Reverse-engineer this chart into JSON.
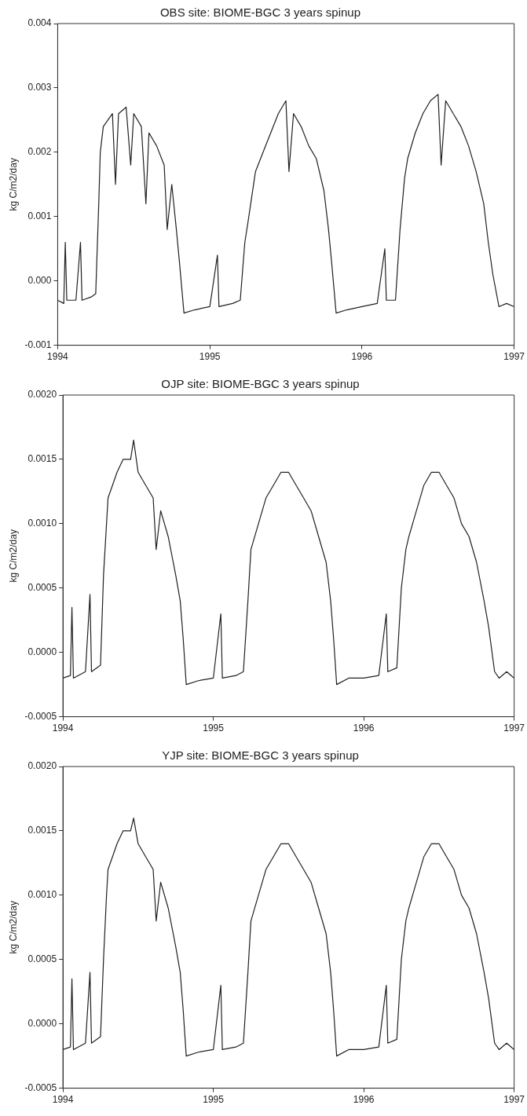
{
  "chart_data": [
    {
      "type": "line",
      "title": "OBS site: BIOME-BGC 3 years spinup",
      "ylabel": "kg C/m2/day",
      "grid": false,
      "legend": false,
      "marker": "none",
      "line_style": "solid",
      "xlim": [
        1994,
        1997
      ],
      "xticks": [
        1994,
        1995,
        1996,
        1997
      ],
      "ylim": [
        -0.001,
        0.004
      ],
      "yticks": [
        {
          "value": -0.001,
          "label": "-0.001"
        },
        {
          "value": 0,
          "label": "0.000"
        },
        {
          "value": 0.001,
          "label": "0.001"
        },
        {
          "value": 0.002,
          "label": "0.002"
        },
        {
          "value": 0.003,
          "label": "0.003"
        },
        {
          "value": 0.004,
          "label": "0.004"
        }
      ],
      "series": [
        {
          "color": "#202020",
          "x": [
            1994.0,
            1994.04,
            1994.05,
            1994.06,
            1994.12,
            1994.15,
            1994.16,
            1994.22,
            1994.25,
            1994.27,
            1994.28,
            1994.3,
            1994.33,
            1994.36,
            1994.38,
            1994.4,
            1994.45,
            1994.48,
            1994.5,
            1994.55,
            1994.58,
            1994.6,
            1994.65,
            1994.7,
            1994.72,
            1994.75,
            1994.78,
            1994.8,
            1994.83,
            1994.9,
            1995.0,
            1995.05,
            1995.06,
            1995.15,
            1995.2,
            1995.23,
            1995.25,
            1995.3,
            1995.35,
            1995.4,
            1995.45,
            1995.5,
            1995.52,
            1995.55,
            1995.6,
            1995.65,
            1995.7,
            1995.75,
            1995.78,
            1995.8,
            1995.83,
            1995.9,
            1996.0,
            1996.1,
            1996.15,
            1996.16,
            1996.22,
            1996.25,
            1996.28,
            1996.3,
            1996.35,
            1996.4,
            1996.45,
            1996.5,
            1996.52,
            1996.55,
            1996.6,
            1996.65,
            1996.7,
            1996.75,
            1996.8,
            1996.83,
            1996.86,
            1996.9,
            1996.95,
            1997.0
          ],
          "values": [
            -0.0003,
            -0.00035,
            0.0006,
            -0.0003,
            -0.0003,
            0.0006,
            -0.0003,
            -0.00025,
            -0.0002,
            0.0012,
            0.002,
            0.0024,
            0.0025,
            0.0026,
            0.0015,
            0.0026,
            0.0027,
            0.0018,
            0.0026,
            0.0024,
            0.0012,
            0.0023,
            0.0021,
            0.0018,
            0.0008,
            0.0015,
            0.0008,
            0.0003,
            -0.0005,
            -0.00045,
            -0.0004,
            0.0004,
            -0.0004,
            -0.00035,
            -0.0003,
            0.0006,
            0.0009,
            0.0017,
            0.002,
            0.0023,
            0.0026,
            0.0028,
            0.0017,
            0.0026,
            0.0024,
            0.0021,
            0.0019,
            0.0014,
            0.0008,
            0.0003,
            -0.0005,
            -0.00045,
            -0.0004,
            -0.00035,
            0.0005,
            -0.0003,
            -0.0003,
            0.0008,
            0.0016,
            0.0019,
            0.0023,
            0.0026,
            0.0028,
            0.0029,
            0.0018,
            0.0028,
            0.0026,
            0.0024,
            0.0021,
            0.0017,
            0.0012,
            0.0006,
            0.0001,
            -0.0004,
            -0.00035,
            -0.0004
          ]
        }
      ]
    },
    {
      "type": "line",
      "title": "OJP site: BIOME-BGC 3 years spinup",
      "ylabel": "kg C/m2/day",
      "grid": false,
      "legend": false,
      "marker": "none",
      "line_style": "solid",
      "xlim": [
        1994,
        1997
      ],
      "xticks": [
        1994,
        1995,
        1996,
        1997
      ],
      "ylim": [
        -0.0005,
        0.002
      ],
      "yticks": [
        {
          "value": -0.0005,
          "label": "-0.0005"
        },
        {
          "value": 0,
          "label": "0.0000"
        },
        {
          "value": 0.0005,
          "label": "0.0005"
        },
        {
          "value": 0.001,
          "label": "0.0010"
        },
        {
          "value": 0.0015,
          "label": "0.0015"
        },
        {
          "value": 0.002,
          "label": "0.0020"
        }
      ],
      "series": [
        {
          "color": "#202020",
          "x": [
            1994.0,
            1994.05,
            1994.06,
            1994.07,
            1994.15,
            1994.18,
            1994.19,
            1994.25,
            1994.27,
            1994.29,
            1994.3,
            1994.33,
            1994.36,
            1994.4,
            1994.45,
            1994.47,
            1994.5,
            1994.55,
            1994.6,
            1994.62,
            1994.65,
            1994.7,
            1994.75,
            1994.78,
            1994.8,
            1994.82,
            1994.9,
            1995.0,
            1995.05,
            1995.06,
            1995.15,
            1995.2,
            1995.23,
            1995.25,
            1995.3,
            1995.35,
            1995.4,
            1995.45,
            1995.5,
            1995.55,
            1995.6,
            1995.65,
            1995.7,
            1995.75,
            1995.78,
            1995.8,
            1995.82,
            1995.9,
            1996.0,
            1996.1,
            1996.15,
            1996.16,
            1996.22,
            1996.25,
            1996.28,
            1996.3,
            1996.35,
            1996.4,
            1996.45,
            1996.5,
            1996.55,
            1996.6,
            1996.65,
            1996.7,
            1996.75,
            1996.8,
            1996.83,
            1996.87,
            1996.9,
            1996.95,
            1997.0
          ],
          "values": [
            -0.0002,
            -0.00018,
            0.00035,
            -0.0002,
            -0.00015,
            0.00045,
            -0.00015,
            -0.0001,
            0.0006,
            0.001,
            0.0012,
            0.0013,
            0.0014,
            0.0015,
            0.0015,
            0.00165,
            0.0014,
            0.0013,
            0.0012,
            0.0008,
            0.0011,
            0.0009,
            0.0006,
            0.0004,
            0.0001,
            -0.00025,
            -0.00022,
            -0.0002,
            0.0003,
            -0.0002,
            -0.00018,
            -0.00015,
            0.0004,
            0.0008,
            0.001,
            0.0012,
            0.0013,
            0.0014,
            0.0014,
            0.0013,
            0.0012,
            0.0011,
            0.0009,
            0.0007,
            0.0004,
            0.0001,
            -0.00025,
            -0.0002,
            -0.0002,
            -0.00018,
            0.0003,
            -0.00015,
            -0.00012,
            0.0005,
            0.0008,
            0.0009,
            0.0011,
            0.0013,
            0.0014,
            0.0014,
            0.0013,
            0.0012,
            0.001,
            0.0009,
            0.0007,
            0.0004,
            0.0002,
            -0.00015,
            -0.0002,
            -0.00015,
            -0.0002
          ]
        }
      ]
    },
    {
      "type": "line",
      "title": "YJP site: BIOME-BGC 3 years spinup",
      "ylabel": "kg C/m2/day",
      "grid": false,
      "legend": false,
      "marker": "none",
      "line_style": "solid",
      "xlim": [
        1994,
        1997
      ],
      "xticks": [
        1994,
        1995,
        1996,
        1997
      ],
      "ylim": [
        -0.0005,
        0.002
      ],
      "yticks": [
        {
          "value": -0.0005,
          "label": "-0.0005"
        },
        {
          "value": 0,
          "label": "0.0000"
        },
        {
          "value": 0.0005,
          "label": "0.0005"
        },
        {
          "value": 0.001,
          "label": "0.0010"
        },
        {
          "value": 0.0015,
          "label": "0.0015"
        },
        {
          "value": 0.002,
          "label": "0.0020"
        }
      ],
      "series": [
        {
          "color": "#202020",
          "x": [
            1994.0,
            1994.05,
            1994.06,
            1994.07,
            1994.15,
            1994.18,
            1994.19,
            1994.25,
            1994.27,
            1994.29,
            1994.3,
            1994.33,
            1994.36,
            1994.4,
            1994.45,
            1994.47,
            1994.5,
            1994.55,
            1994.6,
            1994.62,
            1994.65,
            1994.7,
            1994.75,
            1994.78,
            1994.8,
            1994.82,
            1994.9,
            1995.0,
            1995.05,
            1995.06,
            1995.15,
            1995.2,
            1995.23,
            1995.25,
            1995.3,
            1995.35,
            1995.4,
            1995.45,
            1995.5,
            1995.55,
            1995.6,
            1995.65,
            1995.7,
            1995.75,
            1995.78,
            1995.8,
            1995.82,
            1995.9,
            1996.0,
            1996.1,
            1996.15,
            1996.16,
            1996.22,
            1996.25,
            1996.28,
            1996.3,
            1996.35,
            1996.4,
            1996.45,
            1996.5,
            1996.55,
            1996.6,
            1996.65,
            1996.7,
            1996.75,
            1996.8,
            1996.83,
            1996.87,
            1996.9,
            1996.95,
            1997.0
          ],
          "values": [
            -0.0002,
            -0.00018,
            0.00035,
            -0.0002,
            -0.00015,
            0.0004,
            -0.00015,
            -0.0001,
            0.0005,
            0.001,
            0.0012,
            0.0013,
            0.0014,
            0.0015,
            0.0015,
            0.0016,
            0.0014,
            0.0013,
            0.0012,
            0.0008,
            0.0011,
            0.0009,
            0.0006,
            0.0004,
            0.0001,
            -0.00025,
            -0.00022,
            -0.0002,
            0.0003,
            -0.0002,
            -0.00018,
            -0.00015,
            0.0004,
            0.0008,
            0.001,
            0.0012,
            0.0013,
            0.0014,
            0.0014,
            0.0013,
            0.0012,
            0.0011,
            0.0009,
            0.0007,
            0.0004,
            0.0001,
            -0.00025,
            -0.0002,
            -0.0002,
            -0.00018,
            0.0003,
            -0.00015,
            -0.00012,
            0.0005,
            0.0008,
            0.0009,
            0.0011,
            0.0013,
            0.0014,
            0.0014,
            0.0013,
            0.0012,
            0.001,
            0.0009,
            0.0007,
            0.0004,
            0.0002,
            -0.00015,
            -0.0002,
            -0.00015,
            -0.0002
          ]
        }
      ]
    }
  ]
}
